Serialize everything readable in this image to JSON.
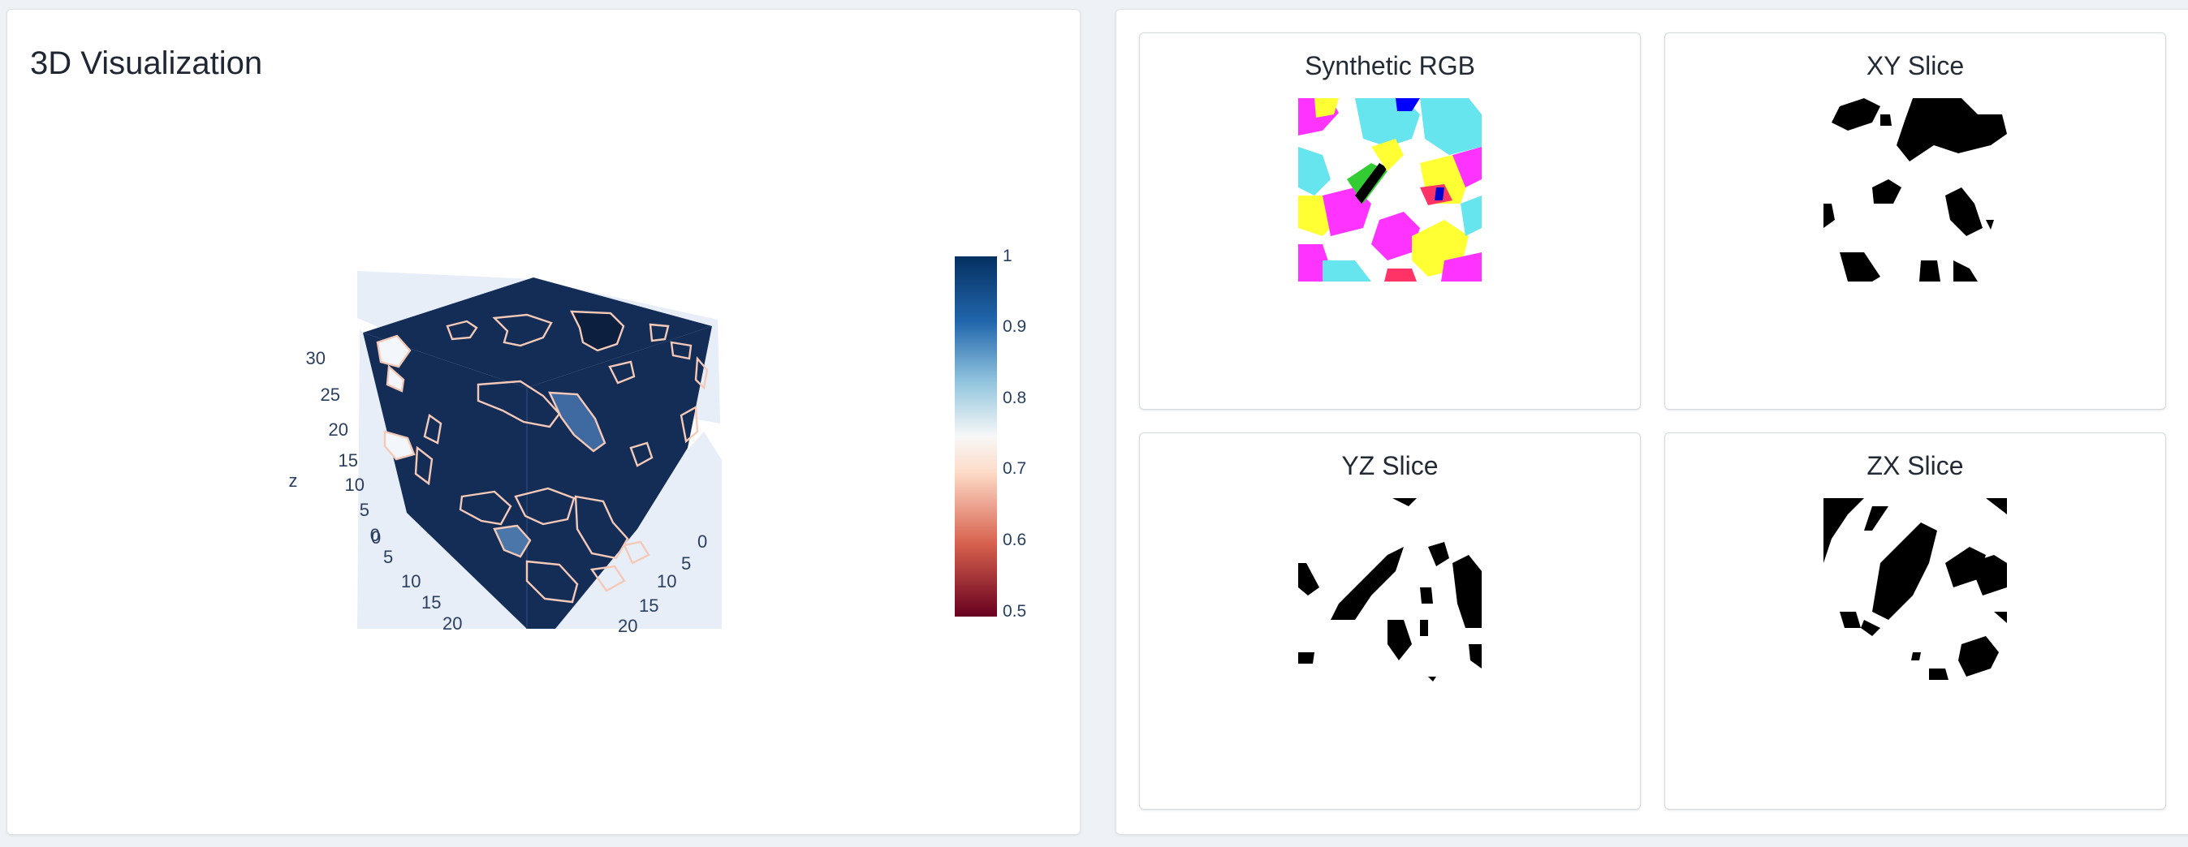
{
  "visualization_panel": {
    "title": "3D Visualization",
    "axes": {
      "z_label": "z",
      "z_ticks": [
        "30",
        "25",
        "20",
        "15",
        "10",
        "5",
        "0"
      ],
      "x_ticks": [
        "0",
        "5",
        "10",
        "15",
        "20"
      ],
      "y_ticks": [
        "0",
        "5",
        "10",
        "15",
        "20"
      ]
    },
    "colorbar": {
      "ticks": [
        "1",
        "0.9",
        "0.8",
        "0.7",
        "0.6",
        "0.5"
      ],
      "range": [
        0.5,
        1
      ],
      "colors": [
        "#67001f",
        "#d6604d",
        "#fddbc7",
        "#f7f7f7",
        "#92c5de",
        "#2166ac",
        "#053061"
      ]
    },
    "surface_color": "#142d57",
    "contour_color": "#f4c9b8"
  },
  "slices": [
    {
      "title": "Synthetic RGB"
    },
    {
      "title": "XY Slice"
    },
    {
      "title": "YZ Slice"
    },
    {
      "title": "ZX Slice"
    }
  ]
}
